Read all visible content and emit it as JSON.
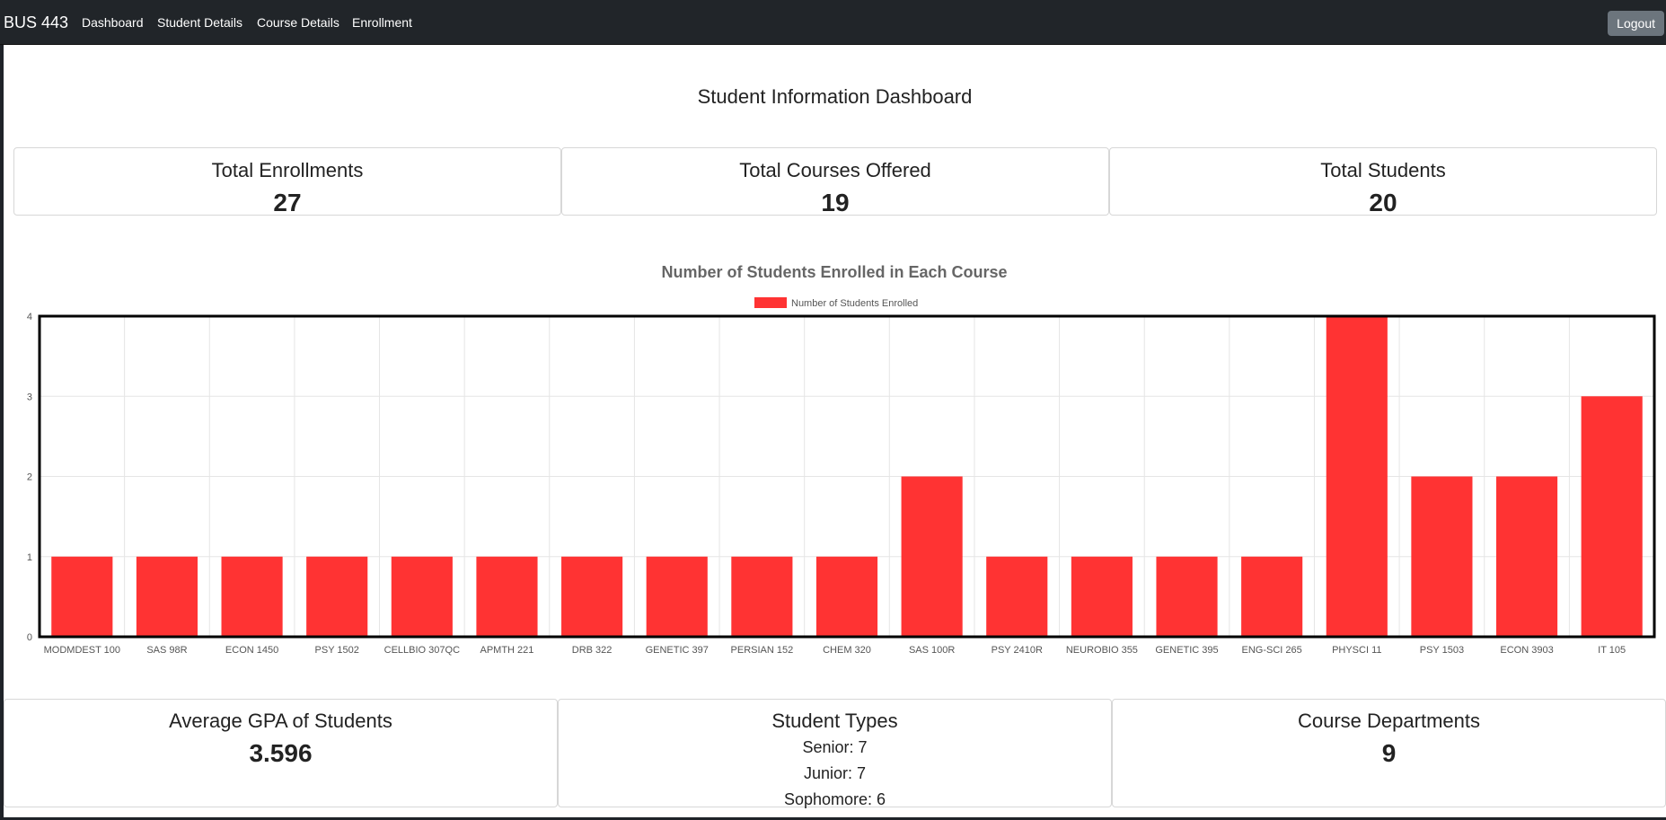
{
  "navbar": {
    "brand": "BUS 443",
    "links": [
      "Dashboard",
      "Student Details",
      "Course Details",
      "Enrollment"
    ],
    "logout_label": "Logout"
  },
  "page_title": "Student Information Dashboard",
  "top_cards": [
    {
      "title": "Total Enrollments",
      "value": "27"
    },
    {
      "title": "Total Courses Offered",
      "value": "19"
    },
    {
      "title": "Total Students",
      "value": "20"
    }
  ],
  "bottom_cards": {
    "gpa": {
      "title": "Average GPA of Students",
      "value": "3.596"
    },
    "student_types": {
      "title": "Student Types",
      "lines": [
        "Senior: 7",
        "Junior: 7",
        "Sophomore: 6"
      ]
    },
    "departments": {
      "title": "Course Departments",
      "value": "9"
    }
  },
  "colors": {
    "bar": "#ff3333",
    "navbar": "#212529",
    "logout": "#6c757d"
  },
  "chart_data": {
    "type": "bar",
    "title": "Number of Students Enrolled in Each Course",
    "legend": "Number of Students Enrolled",
    "categories": [
      "MODMDEST 100",
      "SAS 98R",
      "ECON 1450",
      "PSY 1502",
      "CELLBIO 307QC",
      "APMTH 221",
      "DRB 322",
      "GENETIC 397",
      "PERSIAN 152",
      "CHEM 320",
      "SAS 100R",
      "PSY 2410R",
      "NEUROBIO 355",
      "GENETIC 395",
      "ENG-SCI 265",
      "PHYSCI 11",
      "PSY 1503",
      "ECON 3903",
      "IT 105"
    ],
    "values": [
      1,
      1,
      1,
      1,
      1,
      1,
      1,
      1,
      1,
      1,
      2,
      1,
      1,
      1,
      1,
      4,
      2,
      2,
      3
    ],
    "ylim": [
      0,
      4
    ],
    "yticks": [
      0,
      1,
      2,
      3,
      4
    ],
    "xlabel": "",
    "ylabel": "",
    "grid": true
  }
}
